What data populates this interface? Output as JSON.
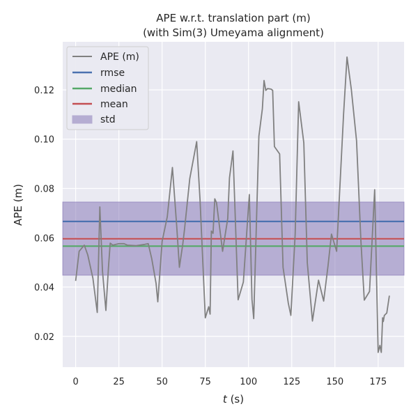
{
  "chart_data": {
    "type": "line",
    "title": "APE w.r.t. translation part (m)",
    "subtitle": "(with Sim(3) Umeyama alignment)",
    "xlabel_var": "t",
    "xlabel_unit": " (s)",
    "ylabel": "APE (m)",
    "xlim": [
      -7.5,
      190
    ],
    "ylim": [
      0.0075,
      0.1395
    ],
    "xticks": [
      0,
      25,
      50,
      75,
      100,
      125,
      150,
      175
    ],
    "yticks": [
      0.02,
      0.04,
      0.06,
      0.08,
      0.1,
      0.12
    ],
    "ytick_labels": [
      "0.02",
      "0.04",
      "0.06",
      "0.08",
      "0.10",
      "0.12"
    ],
    "grid": true,
    "legend_position": "upper-left",
    "series": [
      {
        "name": "APE (m)",
        "color": "#808080",
        "x": [
          0,
          2,
          5,
          7,
          10,
          12.5,
          14,
          15.5,
          17.5,
          19,
          20,
          21.5,
          25,
          28,
          30,
          35,
          40,
          42,
          44,
          46.5,
          47.5,
          50,
          53,
          56,
          58.5,
          60,
          62,
          63,
          66,
          70,
          72,
          75,
          77,
          77.8,
          78.5,
          79.5,
          80.5,
          81.5,
          85,
          88,
          89,
          91,
          94,
          97,
          100.5,
          102,
          103,
          106,
          108,
          109,
          110,
          111,
          113,
          114,
          115,
          118,
          120,
          123,
          124.5,
          127,
          129,
          132,
          134,
          137,
          140.5,
          143.5,
          146,
          148,
          151,
          155,
          157,
          159.5,
          162.5,
          165,
          167,
          170,
          173,
          175,
          176,
          176.8,
          177.6,
          178,
          178.6,
          180,
          181.5
        ],
        "y": [
          0.0425,
          0.0545,
          0.057,
          0.053,
          0.0435,
          0.0297,
          0.0725,
          0.0465,
          0.0305,
          0.048,
          0.0578,
          0.057,
          0.0576,
          0.0576,
          0.057,
          0.0568,
          0.0573,
          0.0576,
          0.0515,
          0.0415,
          0.034,
          0.0585,
          0.0685,
          0.0885,
          0.0645,
          0.048,
          0.0575,
          0.0635,
          0.084,
          0.099,
          0.075,
          0.0275,
          0.032,
          0.029,
          0.0627,
          0.0618,
          0.0758,
          0.0742,
          0.0545,
          0.0678,
          0.0843,
          0.0952,
          0.0348,
          0.042,
          0.0775,
          0.035,
          0.0272,
          0.1012,
          0.1123,
          0.1238,
          0.1198,
          0.1205,
          0.1203,
          0.1198,
          0.097,
          0.094,
          0.048,
          0.0335,
          0.0285,
          0.0615,
          0.1152,
          0.0985,
          0.0498,
          0.0262,
          0.0428,
          0.0343,
          0.0485,
          0.0615,
          0.0545,
          0.1103,
          0.1333,
          0.1202,
          0.0993,
          0.059,
          0.0347,
          0.0382,
          0.0795,
          0.0135,
          0.0163,
          0.0135,
          0.0275,
          0.026,
          0.0285,
          0.0295,
          0.0365
        ]
      },
      {
        "name": "rmse",
        "color": "#4c72b0",
        "value": 0.0666
      },
      {
        "name": "median",
        "color": "#55a868",
        "value": 0.0566
      },
      {
        "name": "mean",
        "color": "#c44e52",
        "value": 0.0596
      },
      {
        "name": "std",
        "color": "#8172b3",
        "range": [
          0.0448,
          0.0745
        ]
      }
    ]
  }
}
